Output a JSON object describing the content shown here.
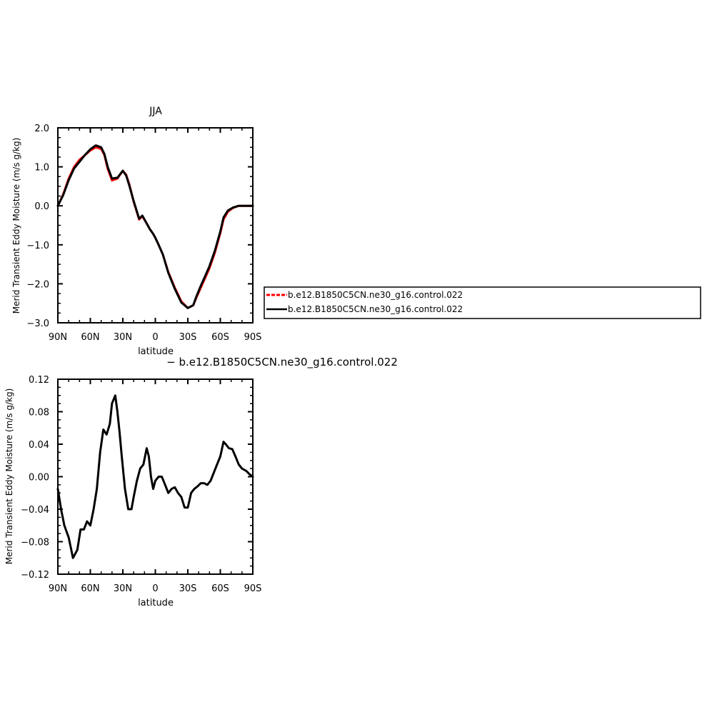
{
  "chart_data": [
    {
      "type": "line",
      "title": "JJA",
      "xlabel": "latitude",
      "ylabel": "Merid Transient Eddy Moisture (m/s g/kg)",
      "xlim": [
        90,
        -90
      ],
      "ylim": [
        -3.0,
        2.0
      ],
      "x_ticks": [
        90,
        60,
        30,
        0,
        -30,
        -60,
        -90
      ],
      "x_tick_labels": [
        "90N",
        "60N",
        "30N",
        "0",
        "30S",
        "60S",
        "90S"
      ],
      "y_ticks": [
        2.0,
        1.0,
        0.0,
        -1.0,
        -2.0,
        -3.0
      ],
      "y_tick_labels": [
        "2.0",
        "1.0",
        "0.0",
        "−1.0",
        "−2.0",
        "−3.0"
      ],
      "legend_position": "right of plot",
      "series": [
        {
          "name": "b.e12.B1850C5CN.ne30_g16.control.022",
          "color": "#ff0000",
          "dash": "dashed",
          "x": [
            90,
            85,
            80,
            75,
            70,
            65,
            60,
            55,
            50,
            47,
            44,
            40,
            35,
            30,
            27,
            24,
            20,
            15,
            12,
            8,
            5,
            2,
            0,
            -3,
            -7,
            -12,
            -18,
            -24,
            -30,
            -35,
            -38,
            -42,
            -46,
            -50,
            -55,
            -60,
            -63,
            -67,
            -72,
            -77,
            -82,
            -86,
            -90
          ],
          "y": [
            0.0,
            0.3,
            0.7,
            1.0,
            1.18,
            1.3,
            1.42,
            1.5,
            1.46,
            1.3,
            0.95,
            0.65,
            0.7,
            0.9,
            0.8,
            0.55,
            0.1,
            -0.35,
            -0.27,
            -0.45,
            -0.6,
            -0.72,
            -0.82,
            -1.0,
            -1.25,
            -1.7,
            -2.1,
            -2.45,
            -2.62,
            -2.55,
            -2.35,
            -2.1,
            -1.85,
            -1.6,
            -1.2,
            -0.7,
            -0.35,
            -0.15,
            -0.05,
            0.0,
            0.0,
            0.0,
            0.0
          ]
        },
        {
          "name": "b.e12.B1850C5CN.ne30_g16.control.022",
          "color": "#000000",
          "dash": "solid",
          "x": [
            90,
            85,
            80,
            75,
            70,
            65,
            60,
            55,
            50,
            47,
            44,
            40,
            35,
            30,
            27,
            24,
            20,
            15,
            12,
            8,
            5,
            2,
            0,
            -3,
            -7,
            -12,
            -18,
            -24,
            -30,
            -35,
            -38,
            -42,
            -46,
            -50,
            -55,
            -60,
            -63,
            -67,
            -72,
            -77,
            -82,
            -86,
            -90
          ],
          "y": [
            0.0,
            0.28,
            0.66,
            0.96,
            1.13,
            1.3,
            1.45,
            1.55,
            1.5,
            1.33,
            1.0,
            0.7,
            0.72,
            0.9,
            0.78,
            0.52,
            0.12,
            -0.33,
            -0.25,
            -0.45,
            -0.6,
            -0.72,
            -0.82,
            -1.0,
            -1.25,
            -1.72,
            -2.13,
            -2.48,
            -2.62,
            -2.55,
            -2.32,
            -2.05,
            -1.8,
            -1.55,
            -1.15,
            -0.66,
            -0.3,
            -0.12,
            -0.04,
            0.0,
            0.0,
            0.0,
            0.0
          ]
        }
      ]
    },
    {
      "type": "line",
      "title": "− b.e12.B1850C5CN.ne30_g16.control.022",
      "xlabel": "latitude",
      "ylabel": "Merid Transient Eddy Moisture (m/s g/kg)",
      "xlim": [
        90,
        -90
      ],
      "ylim": [
        -0.12,
        0.12
      ],
      "x_ticks": [
        90,
        60,
        30,
        0,
        -30,
        -60,
        -90
      ],
      "x_tick_labels": [
        "90N",
        "60N",
        "30N",
        "0",
        "30S",
        "60S",
        "90S"
      ],
      "y_ticks": [
        0.12,
        0.08,
        0.04,
        0.0,
        -0.04,
        -0.08,
        -0.12
      ],
      "y_tick_labels": [
        "0.12",
        "0.08",
        "0.04",
        "0.00",
        "−0.04",
        "−0.08",
        "−0.12"
      ],
      "series": [
        {
          "name": "",
          "color": "#000000",
          "dash": "solid",
          "x": [
            90,
            87,
            84,
            80,
            76,
            72,
            69,
            66,
            63,
            60,
            57,
            54,
            51,
            48,
            45,
            42,
            40,
            37,
            35,
            33,
            31,
            28,
            25,
            22,
            20,
            17,
            14,
            11,
            8,
            6,
            4,
            2,
            0,
            -3,
            -6,
            -9,
            -12,
            -15,
            -18,
            -21,
            -24,
            -27,
            -30,
            -33,
            -36,
            -39,
            -42,
            -45,
            -48,
            -51,
            -54,
            -57,
            -60,
            -63,
            -65,
            -68,
            -71,
            -74,
            -77,
            -80,
            -84,
            -87,
            -90
          ],
          "y": [
            -0.015,
            -0.04,
            -0.06,
            -0.075,
            -0.1,
            -0.09,
            -0.065,
            -0.065,
            -0.055,
            -0.06,
            -0.04,
            -0.015,
            0.03,
            0.058,
            0.052,
            0.065,
            0.09,
            0.1,
            0.08,
            0.055,
            0.025,
            -0.015,
            -0.04,
            -0.04,
            -0.025,
            -0.005,
            0.01,
            0.015,
            0.035,
            0.025,
            0.0,
            -0.015,
            -0.005,
            0.0,
            0.0,
            -0.01,
            -0.02,
            -0.015,
            -0.013,
            -0.02,
            -0.025,
            -0.038,
            -0.038,
            -0.02,
            -0.015,
            -0.012,
            -0.008,
            -0.008,
            -0.01,
            -0.005,
            0.005,
            0.015,
            0.025,
            0.043,
            0.04,
            0.035,
            0.034,
            0.025,
            0.015,
            0.01,
            0.007,
            0.003,
            0.0
          ]
        }
      ]
    }
  ]
}
